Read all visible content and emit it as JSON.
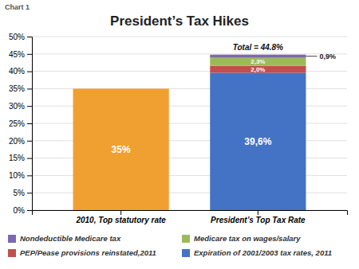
{
  "chart_data": {
    "type": "bar",
    "title": "President’s Tax Hikes",
    "subtitle": "Chart 1",
    "categories": [
      "2010, Top statutory rate",
      "President’s Top Tax Rate"
    ],
    "stacked": true,
    "data_labels": true,
    "grid": true,
    "series": [
      {
        "color": "#f0a030",
        "values": [
          35.0,
          null
        ],
        "value_labels": [
          "35%",
          null
        ]
      },
      {
        "name": "Expiration of 2001/2003 tax rates, 2011",
        "color": "#4472c4",
        "values": [
          null,
          39.6
        ],
        "value_labels": [
          null,
          "39,6%"
        ]
      },
      {
        "name": "PEP/Pease provisions reinstated,2011",
        "color": "#c0504d",
        "values": [
          null,
          2.0
        ],
        "value_labels": [
          null,
          "2,0%"
        ]
      },
      {
        "name": "Medicare tax on wages/salary",
        "color": "#9bbb59",
        "values": [
          null,
          2.3
        ],
        "value_labels": [
          null,
          "2,3%"
        ]
      },
      {
        "name": "Nondeductible Medicare tax",
        "color": "#7b68ae",
        "values": [
          null,
          0.9
        ],
        "value_labels": [
          null,
          "0,9%"
        ]
      }
    ],
    "annotations": [
      "Total = 44.8%"
    ],
    "ylim": [
      0,
      50
    ],
    "yticks": [
      {
        "value": 0,
        "label": "0%"
      },
      {
        "value": 5,
        "label": "5%"
      },
      {
        "value": 10,
        "label": "10%"
      },
      {
        "value": 15,
        "label": "15%"
      },
      {
        "value": 20,
        "label": "20%"
      },
      {
        "value": 25,
        "label": "25%"
      },
      {
        "value": 30,
        "label": "30%"
      },
      {
        "value": 35,
        "label": "35%"
      },
      {
        "value": 40,
        "label": "40%"
      },
      {
        "value": 45,
        "label": "45%"
      },
      {
        "value": 50,
        "label": "50%"
      }
    ]
  }
}
